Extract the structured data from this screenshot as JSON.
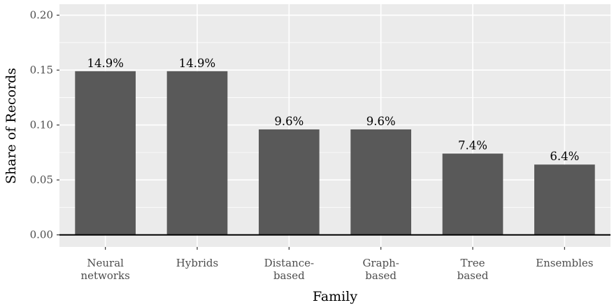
{
  "chart_data": {
    "type": "bar",
    "title": "",
    "xlabel": "Family",
    "ylabel": "Share of Records",
    "categories": [
      [
        "Neural",
        "networks"
      ],
      [
        "Hybrids"
      ],
      [
        "Distance-",
        "based"
      ],
      [
        "Graph-",
        "based"
      ],
      [
        "Tree",
        "based"
      ],
      [
        "Ensembles"
      ]
    ],
    "values": [
      0.149,
      0.149,
      0.096,
      0.096,
      0.074,
      0.064
    ],
    "data_labels": [
      "14.9%",
      "14.9%",
      "9.6%",
      "9.6%",
      "7.4%",
      "6.4%"
    ],
    "yticks": [
      0.0,
      0.05,
      0.1,
      0.15,
      0.2
    ],
    "ytick_labels": [
      "0.00",
      "0.05",
      "0.10",
      "0.15",
      "0.20"
    ],
    "ylim": [
      -0.011,
      0.21
    ],
    "grid": true,
    "colors": {
      "bar": "#595959",
      "panel": "#ebebeb",
      "grid": "#ffffff"
    }
  }
}
